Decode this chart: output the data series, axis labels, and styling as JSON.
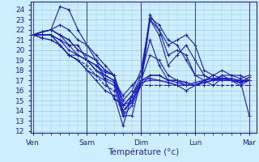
{
  "xlabel": "Température (°c)",
  "bg_color": "#cceeff",
  "grid_color": "#99ccdd",
  "line_color": "#1a1acc",
  "x_tick_positions": [
    0,
    60,
    120,
    180,
    240
  ],
  "x_tick_labels": [
    "Ven",
    "Sam",
    "Dim",
    "Lun",
    "Mar"
  ],
  "ylim": [
    11.8,
    24.8
  ],
  "yticks": [
    12,
    13,
    14,
    15,
    16,
    17,
    18,
    19,
    20,
    21,
    22,
    23,
    24
  ],
  "xlim": [
    -2,
    248
  ],
  "n_points": 25,
  "series": [
    [
      21.5,
      21.8,
      22.0,
      24.3,
      24.0,
      22.0,
      20.5,
      19.0,
      17.0,
      15.2,
      14.5,
      15.5,
      17.0,
      23.2,
      22.5,
      21.0,
      20.5,
      19.0,
      17.5,
      17.0,
      16.5,
      17.2,
      17.0,
      16.8,
      17.3
    ],
    [
      21.5,
      21.2,
      21.0,
      20.5,
      19.5,
      19.0,
      18.0,
      17.0,
      16.0,
      15.5,
      12.5,
      15.5,
      17.0,
      17.2,
      17.0,
      16.8,
      16.5,
      16.0,
      16.5,
      17.0,
      17.5,
      17.2,
      17.0,
      16.5,
      17.0
    ],
    [
      21.5,
      21.8,
      22.0,
      21.5,
      21.0,
      20.0,
      19.5,
      19.0,
      18.0,
      17.5,
      14.5,
      15.5,
      17.5,
      23.5,
      22.0,
      19.5,
      20.0,
      19.5,
      17.5,
      17.5,
      17.0,
      17.5,
      17.5,
      17.5,
      17.0
    ],
    [
      21.5,
      21.5,
      21.5,
      21.0,
      20.5,
      20.5,
      19.0,
      18.0,
      17.5,
      17.0,
      15.5,
      16.5,
      17.5,
      21.0,
      18.5,
      17.0,
      17.0,
      16.8,
      16.5,
      16.8,
      17.0,
      17.2,
      17.0,
      17.0,
      17.0
    ],
    [
      21.5,
      21.8,
      22.0,
      21.5,
      20.5,
      19.5,
      19.0,
      18.5,
      17.8,
      17.5,
      14.5,
      15.0,
      17.0,
      19.5,
      19.0,
      17.5,
      17.0,
      16.5,
      16.5,
      16.8,
      17.0,
      17.2,
      17.2,
      17.0,
      17.0
    ],
    [
      21.5,
      21.2,
      21.0,
      20.5,
      19.5,
      19.0,
      18.5,
      17.5,
      16.5,
      16.0,
      13.5,
      15.5,
      16.5,
      16.5,
      16.5,
      16.5,
      16.5,
      16.5,
      16.5,
      16.5,
      16.5,
      16.5,
      16.5,
      16.5,
      16.5
    ],
    [
      21.5,
      21.5,
      21.5,
      21.0,
      20.0,
      19.5,
      19.0,
      18.5,
      17.5,
      17.0,
      14.0,
      15.0,
      16.5,
      23.0,
      21.5,
      18.5,
      19.5,
      20.5,
      19.0,
      17.5,
      17.0,
      17.5,
      17.0,
      16.8,
      17.0
    ],
    [
      21.5,
      21.5,
      21.5,
      20.5,
      19.5,
      19.0,
      18.0,
      17.5,
      17.0,
      16.5,
      13.5,
      14.5,
      16.5,
      17.5,
      17.5,
      17.0,
      16.8,
      16.5,
      16.5,
      16.8,
      17.0,
      17.0,
      17.0,
      16.8,
      17.0
    ],
    [
      21.5,
      21.8,
      22.0,
      22.5,
      22.0,
      21.0,
      20.5,
      19.5,
      18.5,
      17.5,
      15.0,
      16.0,
      18.0,
      23.0,
      22.0,
      20.5,
      21.0,
      21.5,
      20.5,
      18.0,
      17.5,
      18.0,
      17.5,
      17.2,
      17.5
    ],
    [
      21.5,
      21.5,
      21.5,
      20.5,
      19.5,
      19.5,
      19.0,
      18.0,
      17.2,
      16.8,
      14.0,
      14.8,
      16.8,
      17.0,
      17.0,
      16.8,
      16.5,
      16.5,
      16.8,
      17.0,
      17.2,
      17.0,
      17.0,
      16.8,
      17.0
    ],
    [
      21.5,
      21.8,
      22.0,
      21.5,
      21.0,
      20.0,
      19.5,
      19.0,
      18.0,
      17.5,
      13.5,
      13.5,
      17.0,
      17.5,
      17.5,
      17.0,
      17.0,
      16.8,
      16.5,
      17.0,
      17.2,
      17.2,
      17.0,
      17.0,
      13.5
    ]
  ],
  "dashed_series_indices": [
    5
  ]
}
